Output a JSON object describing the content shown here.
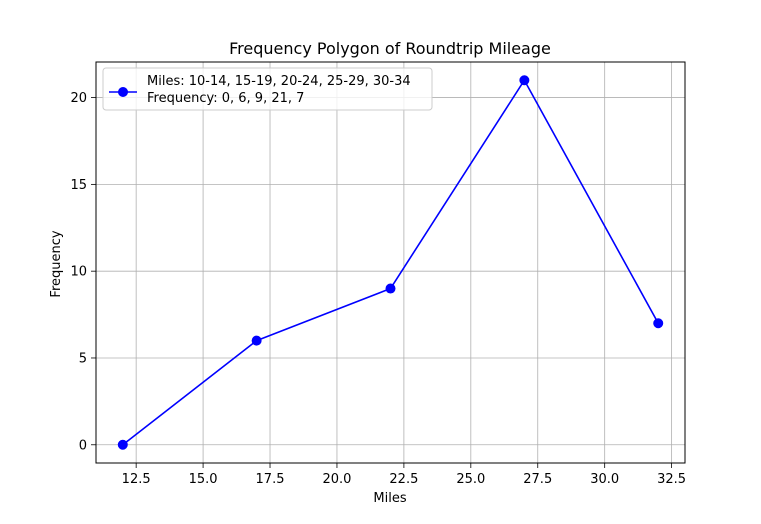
{
  "chart_data": {
    "type": "line",
    "title": "Frequency Polygon of Roundtrip Mileage",
    "xlabel": "Miles",
    "ylabel": "Frequency",
    "xlim": [
      11.0,
      33.0
    ],
    "ylim": [
      -1.05,
      22.05
    ],
    "x_ticks": [
      12.5,
      15.0,
      17.5,
      20.0,
      22.5,
      25.0,
      27.5,
      30.0,
      32.5
    ],
    "x_tick_labels": [
      "12.5",
      "15.0",
      "17.5",
      "20.0",
      "22.5",
      "25.0",
      "27.5",
      "30.0",
      "32.5"
    ],
    "y_ticks": [
      0,
      5,
      10,
      15,
      20
    ],
    "y_tick_labels": [
      "0",
      "5",
      "10",
      "15",
      "20"
    ],
    "grid": true,
    "legend_position": "top-left",
    "series": [
      {
        "name": "Miles: 10-14, 15-19, 20-24, 25-29, 30-34\nFrequency: 0, 6, 9, 21, 7",
        "legend_lines": [
          "Miles: 10-14, 15-19, 20-24, 25-29, 30-34",
          "Frequency: 0, 6, 9, 21, 7"
        ],
        "color": "#0000ff",
        "marker": "circle",
        "x": [
          12,
          17,
          22,
          27,
          32
        ],
        "y": [
          0,
          6,
          9,
          21,
          7
        ]
      }
    ]
  }
}
